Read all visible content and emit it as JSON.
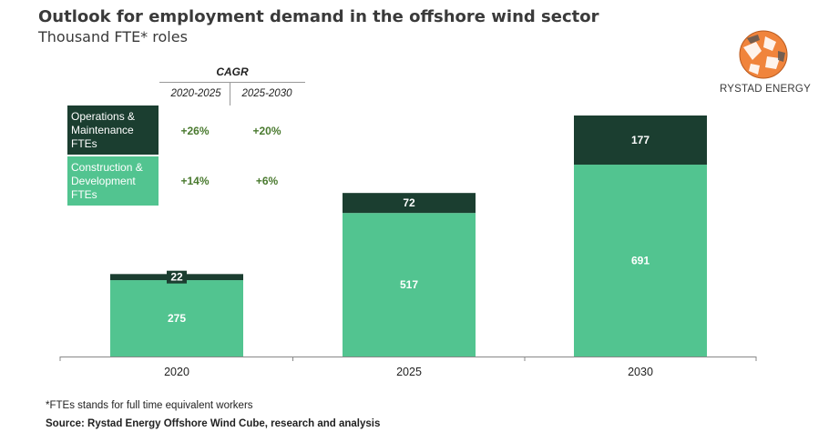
{
  "header": {
    "title": "Outlook for employment demand in the offshore wind sector",
    "subtitle": "Thousand FTE* roles"
  },
  "brand": {
    "name": "RYSTAD ENERGY",
    "logo_icon": "globe-logo-icon",
    "logo_color": "#f0843c"
  },
  "cagr_table": {
    "title": "CAGR",
    "periods": [
      "2020-2025",
      "2025-2030"
    ],
    "rows": [
      {
        "label": "Operations & Maintenance FTEs",
        "values": [
          "+26%",
          "+20%"
        ]
      },
      {
        "label": "Construction & Development FTEs",
        "values": [
          "+14%",
          "+6%"
        ]
      }
    ]
  },
  "chart_data": {
    "type": "bar",
    "stacked": true,
    "categories": [
      "2020",
      "2025",
      "2030"
    ],
    "series": [
      {
        "name": "Construction & Development FTEs",
        "values": [
          275,
          517,
          691
        ],
        "color": "#52c490"
      },
      {
        "name": "Operations & Maintenance FTEs",
        "values": [
          22,
          72,
          177
        ],
        "color": "#1b3e30"
      }
    ],
    "ylim": [
      0,
      900
    ],
    "grid": false,
    "legend": "top-left"
  },
  "footer": {
    "note": "*FTEs stands for full time equivalent workers",
    "source": "Source: Rystad Energy Offshore Wind Cube, research and analysis"
  }
}
